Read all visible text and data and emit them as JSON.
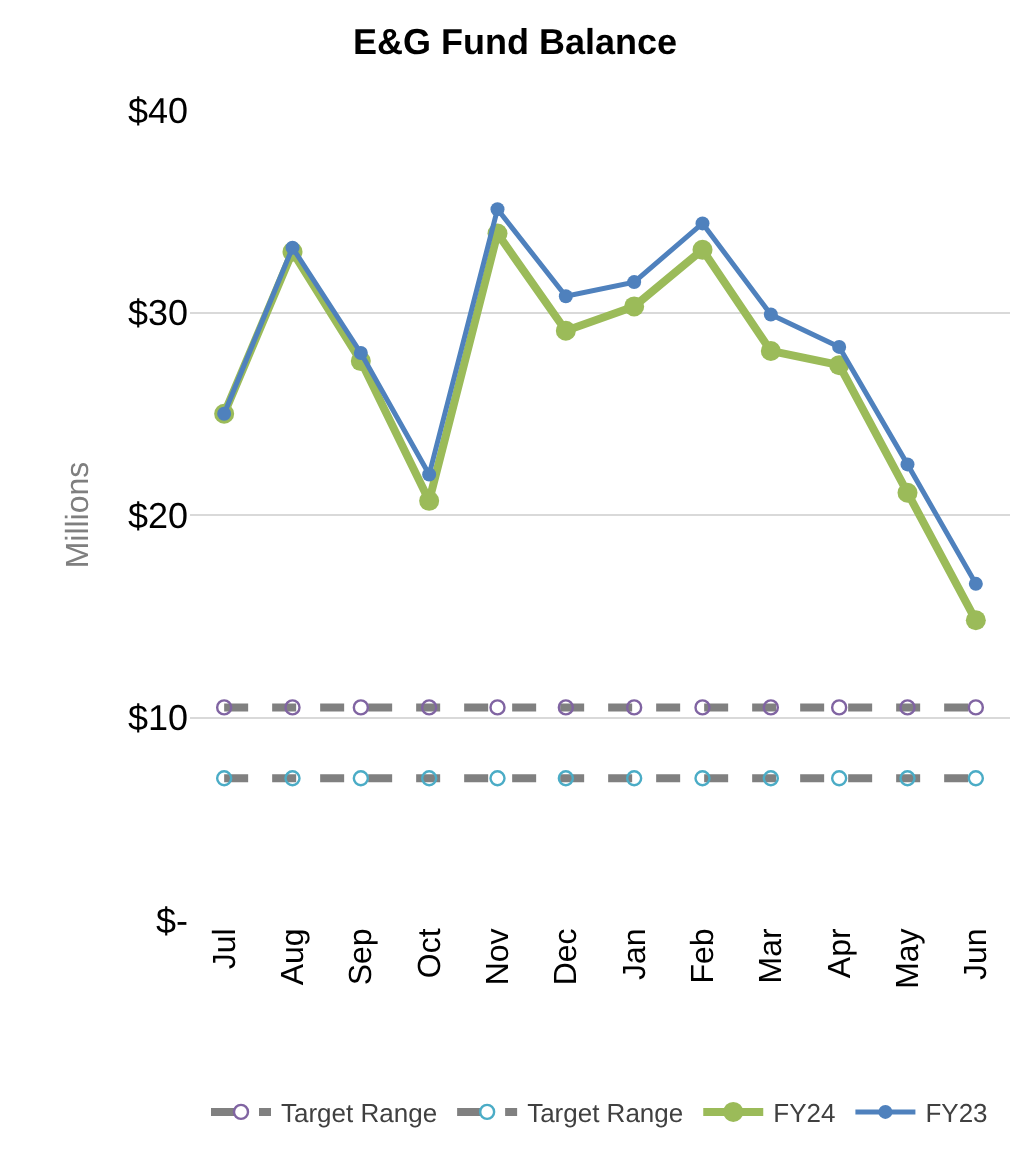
{
  "chart_data": {
    "type": "line",
    "title": "E&G Fund Balance",
    "ylabel": "Millions",
    "categories": [
      "Jul",
      "Aug",
      "Sep",
      "Oct",
      "Nov",
      "Dec",
      "Jan",
      "Feb",
      "Mar",
      "Apr",
      "May",
      "Jun"
    ],
    "series": [
      {
        "name": "Target Range",
        "color": "#808080",
        "colors": [
          "#8064a2",
          "#8064a2",
          "#8064a2",
          "#8064a2",
          "#8064a2",
          "#8064a2",
          "#8064a2",
          "#8064a2",
          "#8064a2",
          "#8064a2",
          "#8064a2",
          "#8064a2"
        ],
        "line_style": "dashed",
        "values": [
          10.5,
          10.5,
          10.5,
          10.5,
          10.5,
          10.5,
          10.5,
          10.5,
          10.5,
          10.5,
          10.5,
          10.5
        ]
      },
      {
        "name": "Target Range",
        "color": "#808080",
        "colors": [
          "#4bacc6",
          "#4bacc6",
          "#4bacc6",
          "#4bacc6",
          "#4bacc6",
          "#4bacc6",
          "#4bacc6",
          "#4bacc6",
          "#4bacc6",
          "#4bacc6",
          "#4bacc6",
          "#4bacc6"
        ],
        "line_style": "dashed",
        "values": [
          7.0,
          7.0,
          7.0,
          7.0,
          7.0,
          7.0,
          7.0,
          7.0,
          7.0,
          7.0,
          7.0,
          7.0
        ]
      },
      {
        "name": "FY24",
        "color": "#9bbb59",
        "line_style": "solid",
        "values": [
          25.0,
          33.0,
          27.6,
          20.7,
          33.9,
          29.1,
          30.3,
          33.1,
          28.1,
          27.4,
          21.1,
          14.8
        ]
      },
      {
        "name": "FY23",
        "color": "#4f81bd",
        "line_style": "solid",
        "values": [
          25.0,
          33.2,
          28.0,
          22.0,
          35.1,
          30.8,
          31.5,
          34.4,
          29.9,
          28.3,
          22.5,
          16.6
        ]
      }
    ],
    "ylim": [
      0,
      40
    ],
    "yticks": [
      {
        "value": 0,
        "label": "$-"
      },
      {
        "value": 10,
        "label": "$10"
      },
      {
        "value": 20,
        "label": "$20"
      },
      {
        "value": 30,
        "label": "$30"
      },
      {
        "value": 40,
        "label": "$40"
      }
    ],
    "grid": "y",
    "legend": "bottom",
    "marker": "circle"
  }
}
